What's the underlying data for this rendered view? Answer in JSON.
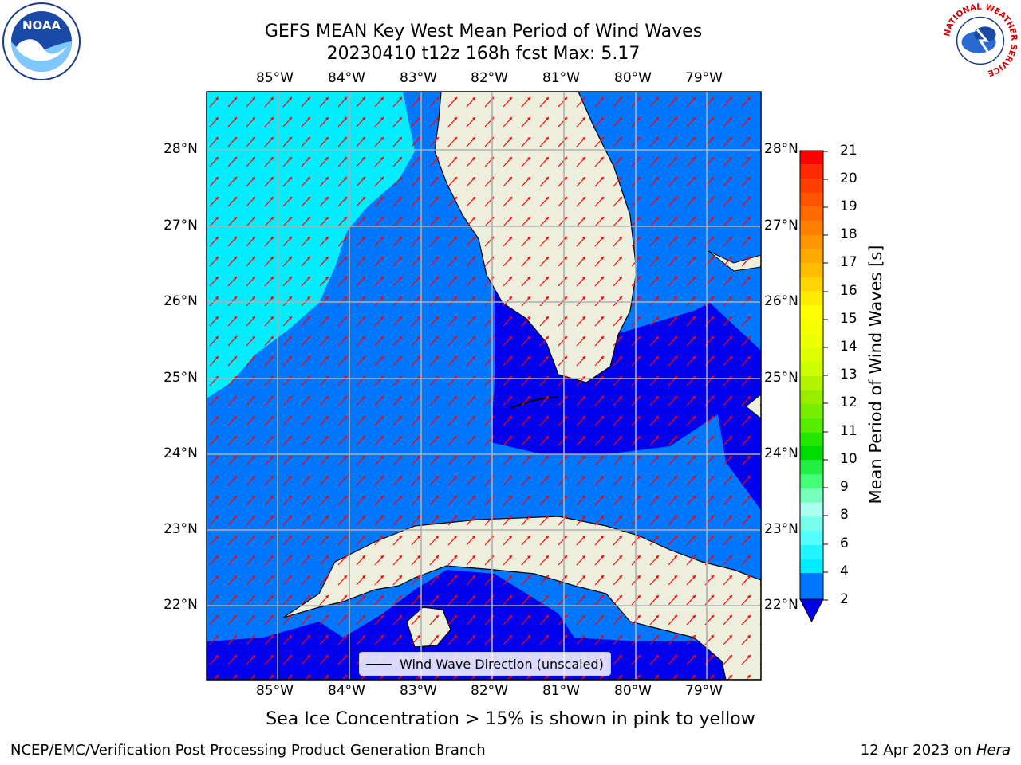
{
  "title": {
    "line1": "GEFS MEAN Key West Mean Period of Wind Waves",
    "line2": "20230410 t12z 168h fcst   Max: 5.17"
  },
  "map": {
    "lon_ticks": [
      "85°W",
      "84°W",
      "83°W",
      "82°W",
      "81°W",
      "80°W",
      "79°W"
    ],
    "lat_ticks": [
      "28°N",
      "27°N",
      "26°N",
      "25°N",
      "24°N",
      "23°N",
      "22°N"
    ],
    "legend_label": "Wind Wave Direction (unscaled)",
    "colors": {
      "land": "#eeeedc",
      "band_lt2": "#0000ee",
      "band_2_4": "#0077ff",
      "band_4_6": "#00eeff",
      "arrows": "#ff0000",
      "grid": "#b0b0b0"
    }
  },
  "colorbar": {
    "label": "Mean Period of Wind Waves [s]",
    "ticks": [
      "21",
      "20",
      "19",
      "18",
      "17",
      "16",
      "15",
      "14",
      "13",
      "12",
      "11",
      "10",
      "9",
      "8",
      "6",
      "4",
      "2"
    ],
    "colors": [
      "#ff0000",
      "#ff2a00",
      "#ff5500",
      "#ff8000",
      "#ffaa00",
      "#ffd400",
      "#ffff00",
      "#eeff00",
      "#ccff00",
      "#99ee00",
      "#55ee00",
      "#00dd00",
      "#44ff77",
      "#77ffbb",
      "#aaffee",
      "#55ffff",
      "#00eeff",
      "#0088ff"
    ]
  },
  "ice_note": "Sea Ice Concentration > 15% is shown in pink to yellow",
  "footer": {
    "left": "NCEP/EMC/Verification Post Processing Product Generation Branch",
    "right_date": "12 Apr 2023 on ",
    "right_host": "Hera"
  },
  "logos": {
    "left": "NOAA",
    "right_ring": "NATIONAL WEATHER SERVICE"
  }
}
